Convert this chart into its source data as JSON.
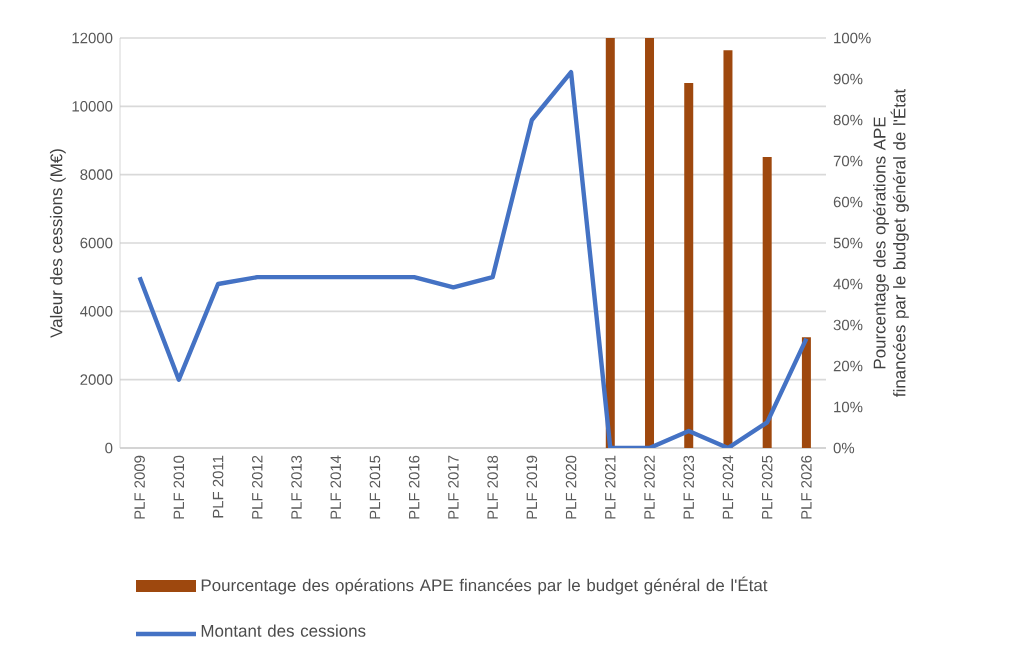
{
  "chart_data": {
    "type": "line",
    "categories": [
      "PLF 2009",
      "PLF 2010",
      "PLF 2011",
      "PLF 2012",
      "PLF 2013",
      "PLF 2014",
      "PLF 2015",
      "PLF 2016",
      "PLF 2017",
      "PLF 2018",
      "PLF 2019",
      "PLF 2020",
      "PLF 2021",
      "PLF 2022",
      "PLF 2023",
      "PLF 2024",
      "PLF 2025",
      "PLF 2026"
    ],
    "ylabel": "Valeur des cessions (M€)",
    "y2label": "Pourcentage des opérations APE financées par le budget général de l'État",
    "ylim": [
      0,
      12000
    ],
    "yticks": [
      0,
      2000,
      4000,
      6000,
      8000,
      10000,
      12000
    ],
    "y2lim": [
      0,
      100
    ],
    "y2ticks": [
      {
        "value": 0,
        "label": "0%"
      },
      {
        "value": 10,
        "label": "10%"
      },
      {
        "value": 20,
        "label": "20%"
      },
      {
        "value": 30,
        "label": "30%"
      },
      {
        "value": 40,
        "label": "40%"
      },
      {
        "value": 50,
        "label": "50%"
      },
      {
        "value": 60,
        "label": "60%"
      },
      {
        "value": 70,
        "label": "70%"
      },
      {
        "value": 80,
        "label": "80%"
      },
      {
        "value": 90,
        "label": "90%"
      },
      {
        "value": 100,
        "label": "100%"
      }
    ],
    "series": [
      {
        "name": "Pourcentage des opérations APE financées par le budget général de l'État",
        "type": "bar",
        "axis": "y2",
        "color": "#9e480e",
        "values": [
          null,
          null,
          null,
          null,
          null,
          null,
          null,
          null,
          null,
          null,
          null,
          null,
          100,
          100,
          89,
          97,
          71,
          27
        ]
      },
      {
        "name": "Montant des cessions",
        "color": "#4472c4",
        "values": [
          5000,
          2000,
          4800,
          5000,
          5000,
          5000,
          5000,
          5000,
          4700,
          5000,
          9600,
          11000,
          0,
          0,
          500,
          0,
          750,
          3200
        ]
      }
    ],
    "grid": "y",
    "legend": "bottom",
    "marker": "none",
    "line_style": "solid"
  }
}
